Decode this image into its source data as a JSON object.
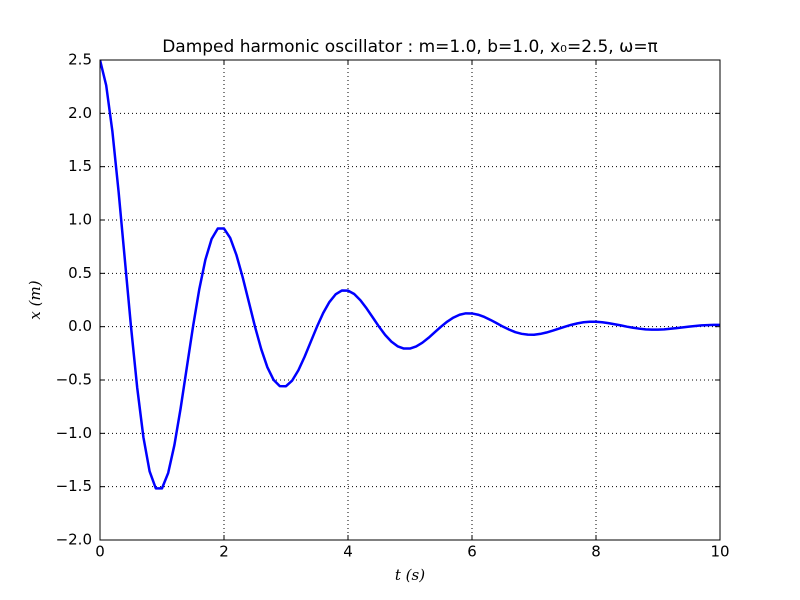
{
  "chart_data": {
    "type": "line",
    "title": "Damped harmonic oscillator : m=1.0, b=1.0, x₀=2.5, ω=π",
    "x_label": "t (s)",
    "y_label": "x (m)",
    "x": [
      0,
      0.1,
      0.2,
      0.3,
      0.4,
      0.5,
      0.6,
      0.7,
      0.8,
      0.9,
      1,
      1.1,
      1.2,
      1.3,
      1.4,
      1.5,
      1.6,
      1.7,
      1.8,
      1.9,
      2,
      2.1,
      2.2,
      2.3,
      2.4,
      2.5,
      2.6,
      2.7,
      2.8,
      2.9,
      3,
      3.1,
      3.2,
      3.3,
      3.4,
      3.5,
      3.6,
      3.7,
      3.8,
      3.9,
      4,
      4.1,
      4.2,
      4.3,
      4.4,
      4.5,
      4.6,
      4.7,
      4.8,
      4.9,
      5,
      5.1,
      5.2,
      5.3,
      5.4,
      5.5,
      5.6,
      5.7,
      5.8,
      5.9,
      6,
      6.1,
      6.2,
      6.3,
      6.4,
      6.5,
      6.6,
      6.7,
      6.8,
      6.9,
      7,
      7.1,
      7.2,
      7.3,
      7.4,
      7.5,
      7.6,
      7.7,
      7.8,
      7.9,
      8,
      8.1,
      8.2,
      8.3,
      8.4,
      8.5,
      8.6,
      8.7,
      8.8,
      8.9,
      9,
      9.1,
      9.2,
      9.3,
      9.4,
      9.5,
      9.6,
      9.7,
      9.8,
      9.9,
      10
    ],
    "values": [
      2.5,
      2.262,
      1.83,
      1.265,
      0.633,
      0,
      -0.572,
      -1.036,
      -1.356,
      -1.516,
      -1.516,
      -1.371,
      -1.11,
      -0.767,
      -0.383,
      0,
      0.347,
      0.628,
      0.822,
      0.92,
      0.92,
      0.832,
      0.673,
      0.466,
      0.233,
      0,
      -0.21,
      -0.381,
      -0.499,
      -0.557,
      -0.558,
      -0.505,
      -0.409,
      -0.282,
      -0.141,
      0,
      0.128,
      0.231,
      0.303,
      0.339,
      0.338,
      0.306,
      0.248,
      0.171,
      0.086,
      0,
      -0.078,
      -0.14,
      -0.184,
      -0.205,
      -0.205,
      -0.185,
      -0.15,
      -0.104,
      -0.052,
      0,
      0.047,
      0.085,
      0.112,
      0.125,
      0.124,
      0.112,
      0.091,
      0.063,
      0.032,
      0,
      -0.028,
      -0.052,
      -0.067,
      -0.075,
      -0.076,
      -0.068,
      -0.055,
      -0.038,
      -0.019,
      0,
      0.017,
      0.031,
      0.041,
      0.046,
      0.046,
      0.041,
      0.033,
      0.023,
      0.012,
      0,
      -0.01,
      -0.019,
      -0.025,
      -0.028,
      -0.028,
      -0.025,
      -0.02,
      -0.014,
      -0.007,
      0,
      0.006,
      0.012,
      0.015,
      0.017,
      0.017
    ],
    "color": "#0000ff",
    "xlim": [
      0,
      10
    ],
    "xticks": [
      0,
      2,
      4,
      6,
      8,
      10
    ],
    "ylim": [
      -2,
      2.5
    ],
    "yticks": [
      {
        "value": -2,
        "label": "−2.0"
      },
      {
        "value": -1.5,
        "label": "−1.5"
      },
      {
        "value": -1,
        "label": "−1.0"
      },
      {
        "value": -0.5,
        "label": "−0.5"
      },
      {
        "value": 0,
        "label": "0.0"
      },
      0.5,
      {
        "value": 1,
        "label": "1.0"
      },
      1.5,
      {
        "value": 2,
        "label": "2.0"
      },
      2.5
    ],
    "grid": true
  }
}
